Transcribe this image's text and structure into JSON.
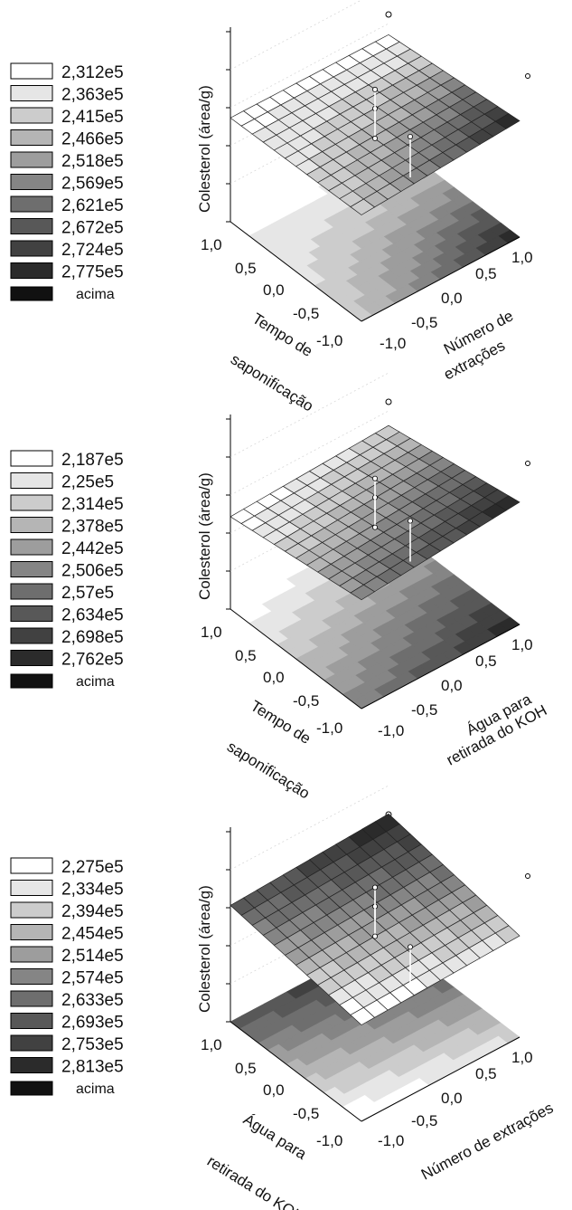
{
  "chart_data": [
    {
      "type": "surface3d",
      "zlabel": "Colesterol (área/g)",
      "xlabel_lines": [
        "Tempo de",
        "saponificação"
      ],
      "ylabel_lines": [
        "Número de",
        "extrações"
      ],
      "x_ticks": [
        "1,0",
        "0,5",
        "0,0",
        "-0,5",
        "-1,0"
      ],
      "y_ticks": [
        "-1,0",
        "-0,5",
        "0,0",
        "0,5",
        "1,0"
      ],
      "legend": [
        "2,312e5",
        "2,363e5",
        "2,415e5",
        "2,466e5",
        "2,518e5",
        "2,569e5",
        "2,621e5",
        "2,672e5",
        "2,724e5",
        "2,775e5"
      ],
      "legend_above": "acima",
      "legend_colors": [
        "#ffffff",
        "#e6e6e6",
        "#cccccc",
        "#b5b5b5",
        "#9d9d9d",
        "#858585",
        "#6e6e6e",
        "#585858",
        "#414141",
        "#2b2b2b"
      ],
      "above_color": "#111111",
      "corners": [
        2.45,
        2.43,
        2.5,
        2.7
      ]
    },
    {
      "type": "surface3d",
      "zlabel": "Colesterol (área/g)",
      "xlabel_lines": [
        "Tempo de",
        "saponificação"
      ],
      "ylabel_lines": [
        "Água para",
        "retirada do KOH"
      ],
      "x_ticks": [
        "1,0",
        "0,5",
        "0,0",
        "-0,5",
        "-1,0"
      ],
      "y_ticks": [
        "-1,0",
        "-0,5",
        "0,0",
        "0,5",
        "1,0"
      ],
      "legend": [
        "2,187e5",
        "2,25e5",
        "2,314e5",
        "2,378e5",
        "2,442e5",
        "2,506e5",
        "2,57e5",
        "2,634e5",
        "2,698e5",
        "2,762e5"
      ],
      "legend_above": "acima",
      "legend_colors": [
        "#ffffff",
        "#e6e6e6",
        "#cccccc",
        "#b5b5b5",
        "#9d9d9d",
        "#858585",
        "#6e6e6e",
        "#585858",
        "#414141",
        "#2b2b2b"
      ],
      "above_color": "#111111",
      "corners": [
        2.22,
        2.36,
        2.55,
        2.82
      ]
    },
    {
      "type": "surface3d",
      "zlabel": "Colesterol (área/g)",
      "xlabel_lines": [
        "Água para",
        "retirada do KOH"
      ],
      "ylabel_lines": [
        "Número de extrações"
      ],
      "x_ticks": [
        "1,0",
        "0,5",
        "0,0",
        "-0,5",
        "-1,0"
      ],
      "y_ticks": [
        "-1,0",
        "-0,5",
        "0,0",
        "0,5",
        "1,0"
      ],
      "legend": [
        "2,275e5",
        "2,334e5",
        "2,394e5",
        "2,454e5",
        "2,514e5",
        "2,574e5",
        "2,633e5",
        "2,693e5",
        "2,753e5",
        "2,813e5"
      ],
      "legend_above": "acima",
      "legend_colors": [
        "#ffffff",
        "#e6e6e6",
        "#cccccc",
        "#b5b5b5",
        "#9d9d9d",
        "#858585",
        "#6e6e6e",
        "#585858",
        "#414141",
        "#2b2b2b"
      ],
      "above_color": "#111111",
      "corners": [
        2.7,
        2.85,
        2.3,
        2.4
      ]
    }
  ]
}
